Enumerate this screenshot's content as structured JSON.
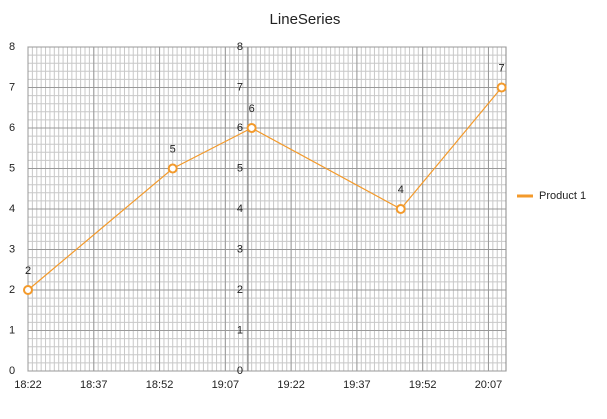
{
  "chart_data": {
    "type": "line",
    "title": "LineSeries",
    "x": [
      1102,
      1135,
      1153,
      1187,
      1210
    ],
    "series": [
      {
        "name": "Product 1",
        "color": "#f39a2b",
        "values": [
          2,
          5,
          6,
          4,
          7
        ]
      }
    ],
    "xlim": [
      1102,
      1211
    ],
    "xticks": [
      {
        "value": 1102,
        "label": "18:22"
      },
      {
        "value": 1117,
        "label": "18:37"
      },
      {
        "value": 1132,
        "label": "18:52"
      },
      {
        "value": 1147,
        "label": "19:07"
      },
      {
        "value": 1162,
        "label": "19:22"
      },
      {
        "value": 1177,
        "label": "19:37"
      },
      {
        "value": 1192,
        "label": "19:52"
      },
      {
        "value": 1207,
        "label": "20:07"
      }
    ],
    "ylim": [
      0,
      8
    ],
    "yticks": [
      0,
      1,
      2,
      3,
      4,
      5,
      6,
      7,
      8
    ],
    "grid": true,
    "legend": "right"
  }
}
